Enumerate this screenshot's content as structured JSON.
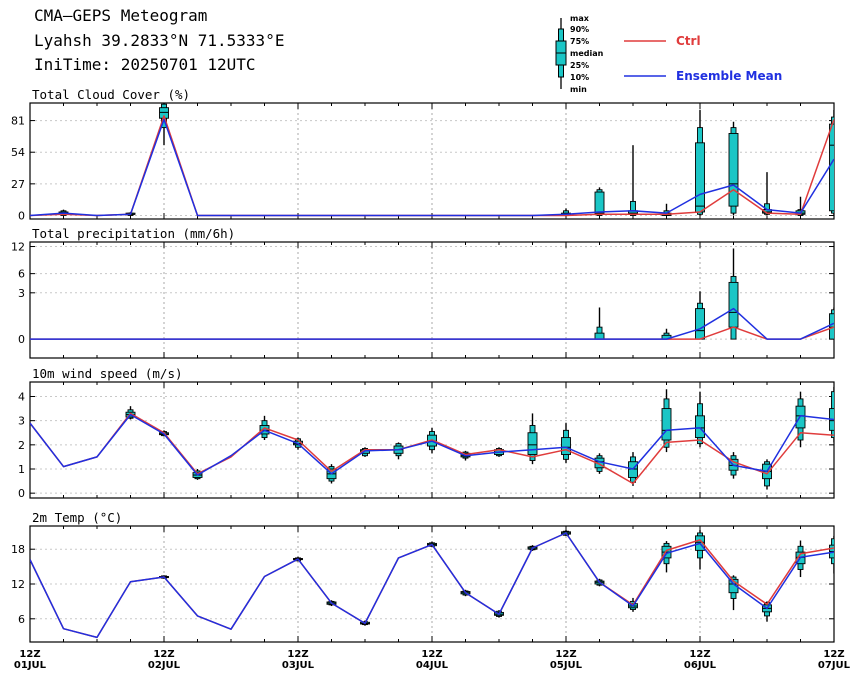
{
  "header": {
    "line1": "CMA—GEPS Meteogram",
    "line2": "Lyahsh 39.2833°N 71.5333°E",
    "line3": "IniTime: 20250701 12UTC"
  },
  "legend": {
    "box_labels": [
      "max",
      "90%",
      "75%",
      "median",
      "25%",
      "10%",
      "min"
    ],
    "ctrl_label": "Ctrl",
    "mean_label": "Ensemble Mean",
    "ctrl_color": "#e03c3c",
    "mean_color": "#2030e0",
    "box_color": "#1bc6c6"
  },
  "x_axis": {
    "ticks": [
      {
        "hour": 0,
        "top": "12Z",
        "bottom": "01JUL"
      },
      {
        "hour": 24,
        "top": "12Z",
        "bottom": "02JUL"
      },
      {
        "hour": 48,
        "top": "12Z",
        "bottom": "03JUL"
      },
      {
        "hour": 72,
        "top": "12Z",
        "bottom": "04JUL"
      },
      {
        "hour": 96,
        "top": "12Z",
        "bottom": "05JUL"
      },
      {
        "hour": 120,
        "top": "12Z",
        "bottom": "06JUL"
      },
      {
        "hour": 144,
        "top": "12Z",
        "bottom": "07JUL"
      }
    ]
  },
  "chart_data": [
    {
      "type": "line",
      "title": "Total Cloud Cover (%)",
      "x_hours": [
        0,
        6,
        12,
        18,
        24,
        30,
        36,
        42,
        48,
        54,
        60,
        66,
        72,
        78,
        84,
        90,
        96,
        102,
        108,
        114,
        120,
        126,
        132,
        138,
        144
      ],
      "ylim": [
        -3,
        96
      ],
      "yticks": [
        0,
        27,
        54,
        81
      ],
      "grid": true,
      "series": [
        {
          "name": "Ctrl",
          "values": [
            0,
            1,
            0,
            1,
            85,
            0,
            0,
            0,
            0,
            0,
            0,
            0,
            0,
            0,
            0,
            0,
            0,
            1,
            1,
            1,
            3,
            22,
            2,
            1,
            82
          ]
        },
        {
          "name": "Ensemble Mean",
          "values": [
            0,
            2,
            0,
            1,
            82,
            0,
            0,
            0,
            0,
            0,
            0,
            0,
            0,
            0,
            0,
            0,
            1,
            3,
            4,
            2,
            18,
            26,
            5,
            2,
            48
          ]
        }
      ],
      "boxes": [
        {
          "x": 6,
          "min": 0,
          "p10": 0,
          "p25": 1,
          "median": 2,
          "p75": 3,
          "p90": 4,
          "max": 5
        },
        {
          "x": 18,
          "min": 0,
          "p10": 0,
          "p25": 1,
          "median": 1,
          "p75": 2,
          "p90": 2,
          "max": 3
        },
        {
          "x": 24,
          "min": 60,
          "p10": 75,
          "p25": 83,
          "median": 88,
          "p75": 92,
          "p90": 95,
          "max": 96
        },
        {
          "x": 96,
          "min": 0,
          "p10": 0,
          "p25": 0,
          "median": 0,
          "p75": 2,
          "p90": 4,
          "max": 6
        },
        {
          "x": 102,
          "min": 0,
          "p10": 0,
          "p25": 1,
          "median": 2,
          "p75": 20,
          "p90": 22,
          "max": 24
        },
        {
          "x": 108,
          "min": 0,
          "p10": 0,
          "p25": 1,
          "median": 2,
          "p75": 4,
          "p90": 12,
          "max": 60
        },
        {
          "x": 114,
          "min": 0,
          "p10": 0,
          "p25": 0,
          "median": 1,
          "p75": 2,
          "p90": 4,
          "max": 10
        },
        {
          "x": 120,
          "min": 0,
          "p10": 1,
          "p25": 3,
          "median": 8,
          "p75": 62,
          "p90": 75,
          "max": 90
        },
        {
          "x": 126,
          "min": 0,
          "p10": 2,
          "p25": 8,
          "median": 27,
          "p75": 70,
          "p90": 75,
          "max": 80
        },
        {
          "x": 132,
          "min": 0,
          "p10": 1,
          "p25": 2,
          "median": 3,
          "p75": 5,
          "p90": 10,
          "max": 37
        },
        {
          "x": 138,
          "min": 0,
          "p10": 0,
          "p25": 1,
          "median": 2,
          "p75": 4,
          "p90": 5,
          "max": 16
        },
        {
          "x": 144,
          "min": 0,
          "p10": 2,
          "p25": 4,
          "median": 60,
          "p75": 78,
          "p90": 84,
          "max": 90
        }
      ]
    },
    {
      "type": "line",
      "title": "Total precipitation (mm/6h)",
      "x_hours": [
        0,
        6,
        12,
        18,
        24,
        30,
        36,
        42,
        48,
        54,
        60,
        66,
        72,
        78,
        84,
        90,
        96,
        102,
        108,
        114,
        120,
        126,
        132,
        138,
        144
      ],
      "ylim": [
        -0.5,
        13.2
      ],
      "yscale": "sqrt",
      "yticks": [
        0,
        3,
        6,
        12
      ],
      "grid": true,
      "series": [
        {
          "name": "Ctrl",
          "values": [
            0,
            0,
            0,
            0,
            0,
            0,
            0,
            0,
            0,
            0,
            0,
            0,
            0,
            0,
            0,
            0,
            0,
            0,
            0,
            0,
            0,
            0.2,
            0,
            0,
            0.2
          ]
        },
        {
          "name": "Ensemble Mean",
          "values": [
            0,
            0,
            0,
            0,
            0,
            0,
            0,
            0,
            0,
            0,
            0,
            0,
            0,
            0,
            0,
            0,
            0,
            0,
            0,
            0,
            0.15,
            1.3,
            0,
            0,
            0.35
          ]
        }
      ],
      "boxes": [
        {
          "x": 102,
          "min": 0,
          "p10": 0,
          "p25": 0,
          "median": 0,
          "p75": 0.05,
          "p90": 0.2,
          "max": 1.4
        },
        {
          "x": 114,
          "min": 0,
          "p10": 0,
          "p25": 0,
          "median": 0,
          "p75": 0.02,
          "p90": 0.05,
          "max": 0.15
        },
        {
          "x": 120,
          "min": 0,
          "p10": 0,
          "p25": 0,
          "median": 0.1,
          "p75": 1.3,
          "p90": 1.8,
          "max": 3.2
        },
        {
          "x": 126,
          "min": 0,
          "p10": 0,
          "p25": 0.2,
          "median": 1,
          "p75": 4.5,
          "p90": 5.5,
          "max": 11.5
        },
        {
          "x": 144,
          "min": 0,
          "p10": 0,
          "p25": 0,
          "median": 0.2,
          "p75": 0.9,
          "p90": 1.2,
          "max": 1.4
        }
      ]
    },
    {
      "type": "line",
      "title": "10m wind speed (m/s)",
      "x_hours": [
        0,
        6,
        12,
        18,
        24,
        30,
        36,
        42,
        48,
        54,
        60,
        66,
        72,
        78,
        84,
        90,
        96,
        102,
        108,
        114,
        120,
        126,
        132,
        138,
        144
      ],
      "ylim": [
        -0.2,
        4.6
      ],
      "yticks": [
        0,
        1,
        2,
        3,
        4
      ],
      "grid": true,
      "series": [
        {
          "name": "Ctrl",
          "values": [
            2.9,
            1.1,
            1.5,
            3.3,
            2.5,
            0.8,
            1.5,
            2.7,
            2.2,
            0.9,
            1.8,
            1.8,
            2.2,
            1.6,
            1.8,
            1.5,
            1.8,
            1.2,
            0.4,
            2.1,
            2.2,
            1.3,
            0.8,
            2.5,
            2.4
          ]
        },
        {
          "name": "Ensemble Mean",
          "values": [
            2.9,
            1.1,
            1.5,
            3.25,
            2.45,
            0.75,
            1.55,
            2.6,
            2.05,
            0.8,
            1.75,
            1.8,
            2.15,
            1.55,
            1.7,
            1.8,
            1.9,
            1.3,
            1.0,
            2.6,
            2.7,
            1.15,
            0.9,
            3.2,
            3.05
          ]
        }
      ],
      "boxes": [
        {
          "x": 18,
          "min": 3.05,
          "p10": 3.1,
          "p25": 3.15,
          "median": 3.25,
          "p75": 3.35,
          "p90": 3.45,
          "max": 3.6
        },
        {
          "x": 24,
          "min": 2.35,
          "p10": 2.38,
          "p25": 2.42,
          "median": 2.45,
          "p75": 2.5,
          "p90": 2.55,
          "max": 2.6
        },
        {
          "x": 30,
          "min": 0.55,
          "p10": 0.6,
          "p25": 0.65,
          "median": 0.75,
          "p75": 0.85,
          "p90": 0.92,
          "max": 1.0
        },
        {
          "x": 42,
          "min": 2.2,
          "p10": 2.3,
          "p25": 2.45,
          "median": 2.6,
          "p75": 2.8,
          "p90": 3.0,
          "max": 3.2
        },
        {
          "x": 48,
          "min": 1.8,
          "p10": 1.9,
          "p25": 2.0,
          "median": 2.05,
          "p75": 2.15,
          "p90": 2.25,
          "max": 2.3
        },
        {
          "x": 54,
          "min": 0.4,
          "p10": 0.5,
          "p25": 0.6,
          "median": 0.8,
          "p75": 1.0,
          "p90": 1.1,
          "max": 1.2
        },
        {
          "x": 60,
          "min": 1.5,
          "p10": 1.55,
          "p25": 1.65,
          "median": 1.75,
          "p75": 1.8,
          "p90": 1.85,
          "max": 1.9
        },
        {
          "x": 66,
          "min": 1.4,
          "p10": 1.55,
          "p25": 1.65,
          "median": 1.8,
          "p75": 1.95,
          "p90": 2.05,
          "max": 2.1
        },
        {
          "x": 72,
          "min": 1.65,
          "p10": 1.8,
          "p25": 1.95,
          "median": 2.15,
          "p75": 2.4,
          "p90": 2.55,
          "max": 2.7
        },
        {
          "x": 78,
          "min": 1.35,
          "p10": 1.45,
          "p25": 1.5,
          "median": 1.55,
          "p75": 1.65,
          "p90": 1.7,
          "max": 1.75
        },
        {
          "x": 84,
          "min": 1.5,
          "p10": 1.55,
          "p25": 1.6,
          "median": 1.7,
          "p75": 1.8,
          "p90": 1.85,
          "max": 1.9
        },
        {
          "x": 90,
          "min": 1.2,
          "p10": 1.35,
          "p25": 1.6,
          "median": 2.0,
          "p75": 2.5,
          "p90": 2.8,
          "max": 3.3
        },
        {
          "x": 96,
          "min": 1.25,
          "p10": 1.4,
          "p25": 1.6,
          "median": 1.9,
          "p75": 2.3,
          "p90": 2.6,
          "max": 2.9
        },
        {
          "x": 102,
          "min": 0.8,
          "p10": 0.9,
          "p25": 1.05,
          "median": 1.3,
          "p75": 1.45,
          "p90": 1.55,
          "max": 1.65
        },
        {
          "x": 108,
          "min": 0.3,
          "p10": 0.45,
          "p25": 0.65,
          "median": 1.0,
          "p75": 1.3,
          "p90": 1.5,
          "max": 1.7
        },
        {
          "x": 114,
          "min": 1.7,
          "p10": 1.9,
          "p25": 2.2,
          "median": 2.6,
          "p75": 3.5,
          "p90": 3.9,
          "max": 4.3
        },
        {
          "x": 120,
          "min": 1.9,
          "p10": 2.05,
          "p25": 2.3,
          "median": 2.7,
          "p75": 3.2,
          "p90": 3.7,
          "max": 4.2
        },
        {
          "x": 126,
          "min": 0.6,
          "p10": 0.75,
          "p25": 0.95,
          "median": 1.15,
          "p75": 1.4,
          "p90": 1.55,
          "max": 1.7
        },
        {
          "x": 132,
          "min": 0.15,
          "p10": 0.3,
          "p25": 0.6,
          "median": 0.9,
          "p75": 1.2,
          "p90": 1.3,
          "max": 1.4
        },
        {
          "x": 138,
          "min": 1.9,
          "p10": 2.2,
          "p25": 2.7,
          "median": 3.2,
          "p75": 3.6,
          "p90": 3.9,
          "max": 4.2
        },
        {
          "x": 144,
          "min": 2.1,
          "p10": 2.3,
          "p25": 2.6,
          "median": 3.0,
          "p75": 3.5,
          "p90": 4.2,
          "max": 4.4
        }
      ]
    },
    {
      "type": "line",
      "title": "2m Temp (°C)",
      "x_hours": [
        0,
        6,
        12,
        18,
        24,
        30,
        36,
        42,
        48,
        54,
        60,
        66,
        72,
        78,
        84,
        90,
        96,
        102,
        108,
        114,
        120,
        126,
        132,
        138,
        144
      ],
      "ylim": [
        2,
        22
      ],
      "yticks": [
        6,
        12,
        18
      ],
      "grid": true,
      "series": [
        {
          "name": "Ctrl",
          "values": [
            16.2,
            4.3,
            2.8,
            12.4,
            13.2,
            6.5,
            4.2,
            13.3,
            16.3,
            8.7,
            5.2,
            16.5,
            18.8,
            10.5,
            6.8,
            18.2,
            20.8,
            12.3,
            8.4,
            17.8,
            19.6,
            12.5,
            8.5,
            17.2,
            18.2
          ]
        },
        {
          "name": "Ensemble Mean",
          "values": [
            16.2,
            4.3,
            2.8,
            12.4,
            13.2,
            6.5,
            4.2,
            13.3,
            16.3,
            8.7,
            5.2,
            16.5,
            18.8,
            10.5,
            6.8,
            18.2,
            20.8,
            12.3,
            8.2,
            17.3,
            19.0,
            12.0,
            7.8,
            16.6,
            17.5
          ]
        }
      ],
      "boxes": [
        {
          "x": 24,
          "min": 12.9,
          "p10": 13.0,
          "p25": 13.1,
          "median": 13.2,
          "p75": 13.3,
          "p90": 13.4,
          "max": 13.5
        },
        {
          "x": 48,
          "min": 15.9,
          "p10": 16.0,
          "p25": 16.2,
          "median": 16.3,
          "p75": 16.4,
          "p90": 16.5,
          "max": 16.7
        },
        {
          "x": 54,
          "min": 8.2,
          "p10": 8.4,
          "p25": 8.5,
          "median": 8.7,
          "p75": 8.9,
          "p90": 9.0,
          "max": 9.2
        },
        {
          "x": 60,
          "min": 4.8,
          "p10": 5.0,
          "p25": 5.1,
          "median": 5.2,
          "p75": 5.4,
          "p90": 5.5,
          "max": 5.7
        },
        {
          "x": 72,
          "min": 18.4,
          "p10": 18.5,
          "p25": 18.6,
          "median": 18.8,
          "p75": 19.0,
          "p90": 19.1,
          "max": 19.3
        },
        {
          "x": 78,
          "min": 9.9,
          "p10": 10.1,
          "p25": 10.3,
          "median": 10.5,
          "p75": 10.7,
          "p90": 10.8,
          "max": 11.0
        },
        {
          "x": 84,
          "min": 6.2,
          "p10": 6.4,
          "p25": 6.6,
          "median": 6.8,
          "p75": 7.1,
          "p90": 7.3,
          "max": 7.5
        },
        {
          "x": 90,
          "min": 17.7,
          "p10": 17.9,
          "p25": 18.0,
          "median": 18.2,
          "p75": 18.4,
          "p90": 18.5,
          "max": 18.7
        },
        {
          "x": 96,
          "min": 20.3,
          "p10": 20.4,
          "p25": 20.6,
          "median": 20.8,
          "p75": 21.0,
          "p90": 21.1,
          "max": 21.3
        },
        {
          "x": 102,
          "min": 11.6,
          "p10": 11.8,
          "p25": 12.0,
          "median": 12.3,
          "p75": 12.5,
          "p90": 12.7,
          "max": 12.9
        },
        {
          "x": 108,
          "min": 7.2,
          "p10": 7.6,
          "p25": 7.9,
          "median": 8.2,
          "p75": 8.6,
          "p90": 9.0,
          "max": 9.6
        },
        {
          "x": 114,
          "min": 14.0,
          "p10": 15.5,
          "p25": 16.5,
          "median": 17.5,
          "p75": 18.5,
          "p90": 19.0,
          "max": 19.4
        },
        {
          "x": 120,
          "min": 14.5,
          "p10": 16.5,
          "p25": 17.8,
          "median": 19.2,
          "p75": 20.3,
          "p90": 20.8,
          "max": 21.3
        },
        {
          "x": 126,
          "min": 7.5,
          "p10": 9.5,
          "p25": 10.5,
          "median": 12.0,
          "p75": 12.8,
          "p90": 13.2,
          "max": 13.5
        },
        {
          "x": 132,
          "min": 5.5,
          "p10": 6.5,
          "p25": 7.2,
          "median": 7.8,
          "p75": 8.4,
          "p90": 8.8,
          "max": 9.0
        },
        {
          "x": 138,
          "min": 13.2,
          "p10": 14.5,
          "p25": 15.5,
          "median": 16.6,
          "p75": 17.5,
          "p90": 18.5,
          "max": 19.5
        },
        {
          "x": 144,
          "min": 13.8,
          "p10": 15.5,
          "p25": 16.5,
          "median": 17.6,
          "p75": 18.7,
          "p90": 19.8,
          "max": 20.3
        }
      ]
    }
  ]
}
